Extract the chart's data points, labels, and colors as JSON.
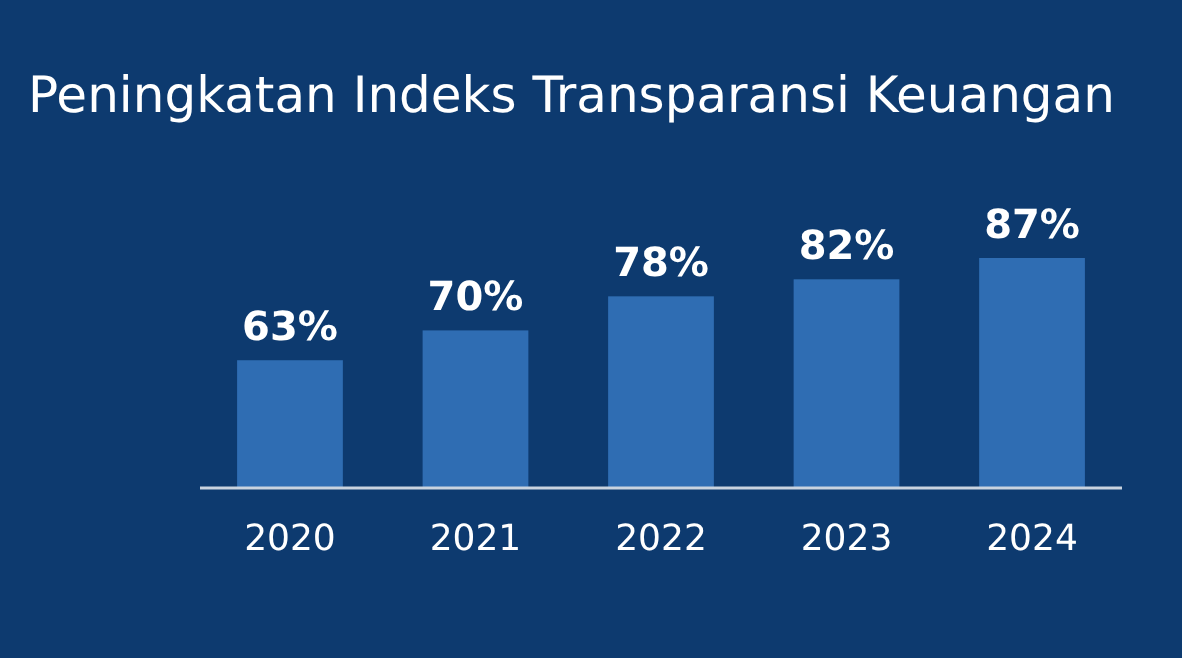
{
  "chart_data": {
    "type": "bar",
    "title": "Peningkatan Indeks Transparansi Keuangan",
    "categories": [
      "2020",
      "2021",
      "2022",
      "2023",
      "2024"
    ],
    "values": [
      63,
      70,
      78,
      82,
      87
    ],
    "value_labels": [
      "63%",
      "70%",
      "78%",
      "82%",
      "87%"
    ],
    "color": "#2f6db3",
    "ylim": [
      33,
      87
    ],
    "tick_labels": "x"
  }
}
